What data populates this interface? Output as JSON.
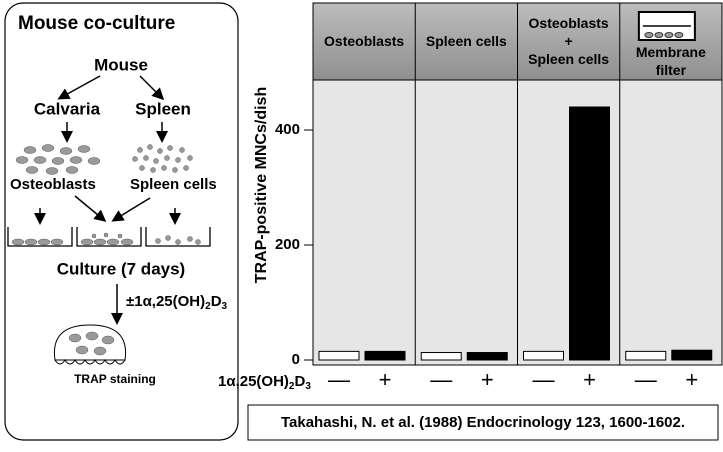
{
  "diagram": {
    "title": "Mouse co-culture",
    "source": "Mouse",
    "left_branch": "Calvaria",
    "right_branch": "Spleen",
    "left_cells": "Osteoblasts",
    "right_cells": "Spleen cells",
    "step": "Culture (7 days)",
    "treatment_parts": [
      "±1α,25(OH)",
      "2",
      "D",
      "3"
    ],
    "result": "TRAP staining"
  },
  "chart_data": {
    "type": "bar",
    "ylabel": "TRAP-positive MNCs/dish",
    "categories": [
      "Osteoblasts",
      "Spleen cells",
      "Osteoblasts\n+\nSpleen cells",
      "Membrane\nfilter"
    ],
    "treatment_label_parts": [
      "1α,25(OH)",
      "2",
      "D",
      "3"
    ],
    "series": [
      {
        "name": "—",
        "color": "#ffffff",
        "values": [
          15,
          13,
          15,
          15
        ]
      },
      {
        "name": "+",
        "color": "#000000",
        "values": [
          15,
          13,
          440,
          17
        ]
      }
    ],
    "ylim": [
      0,
      480
    ],
    "yticks": [
      0,
      200,
      400
    ]
  },
  "citation": "Takahashi, N. et al. (1988) Endocrinology 123, 1600-1602."
}
